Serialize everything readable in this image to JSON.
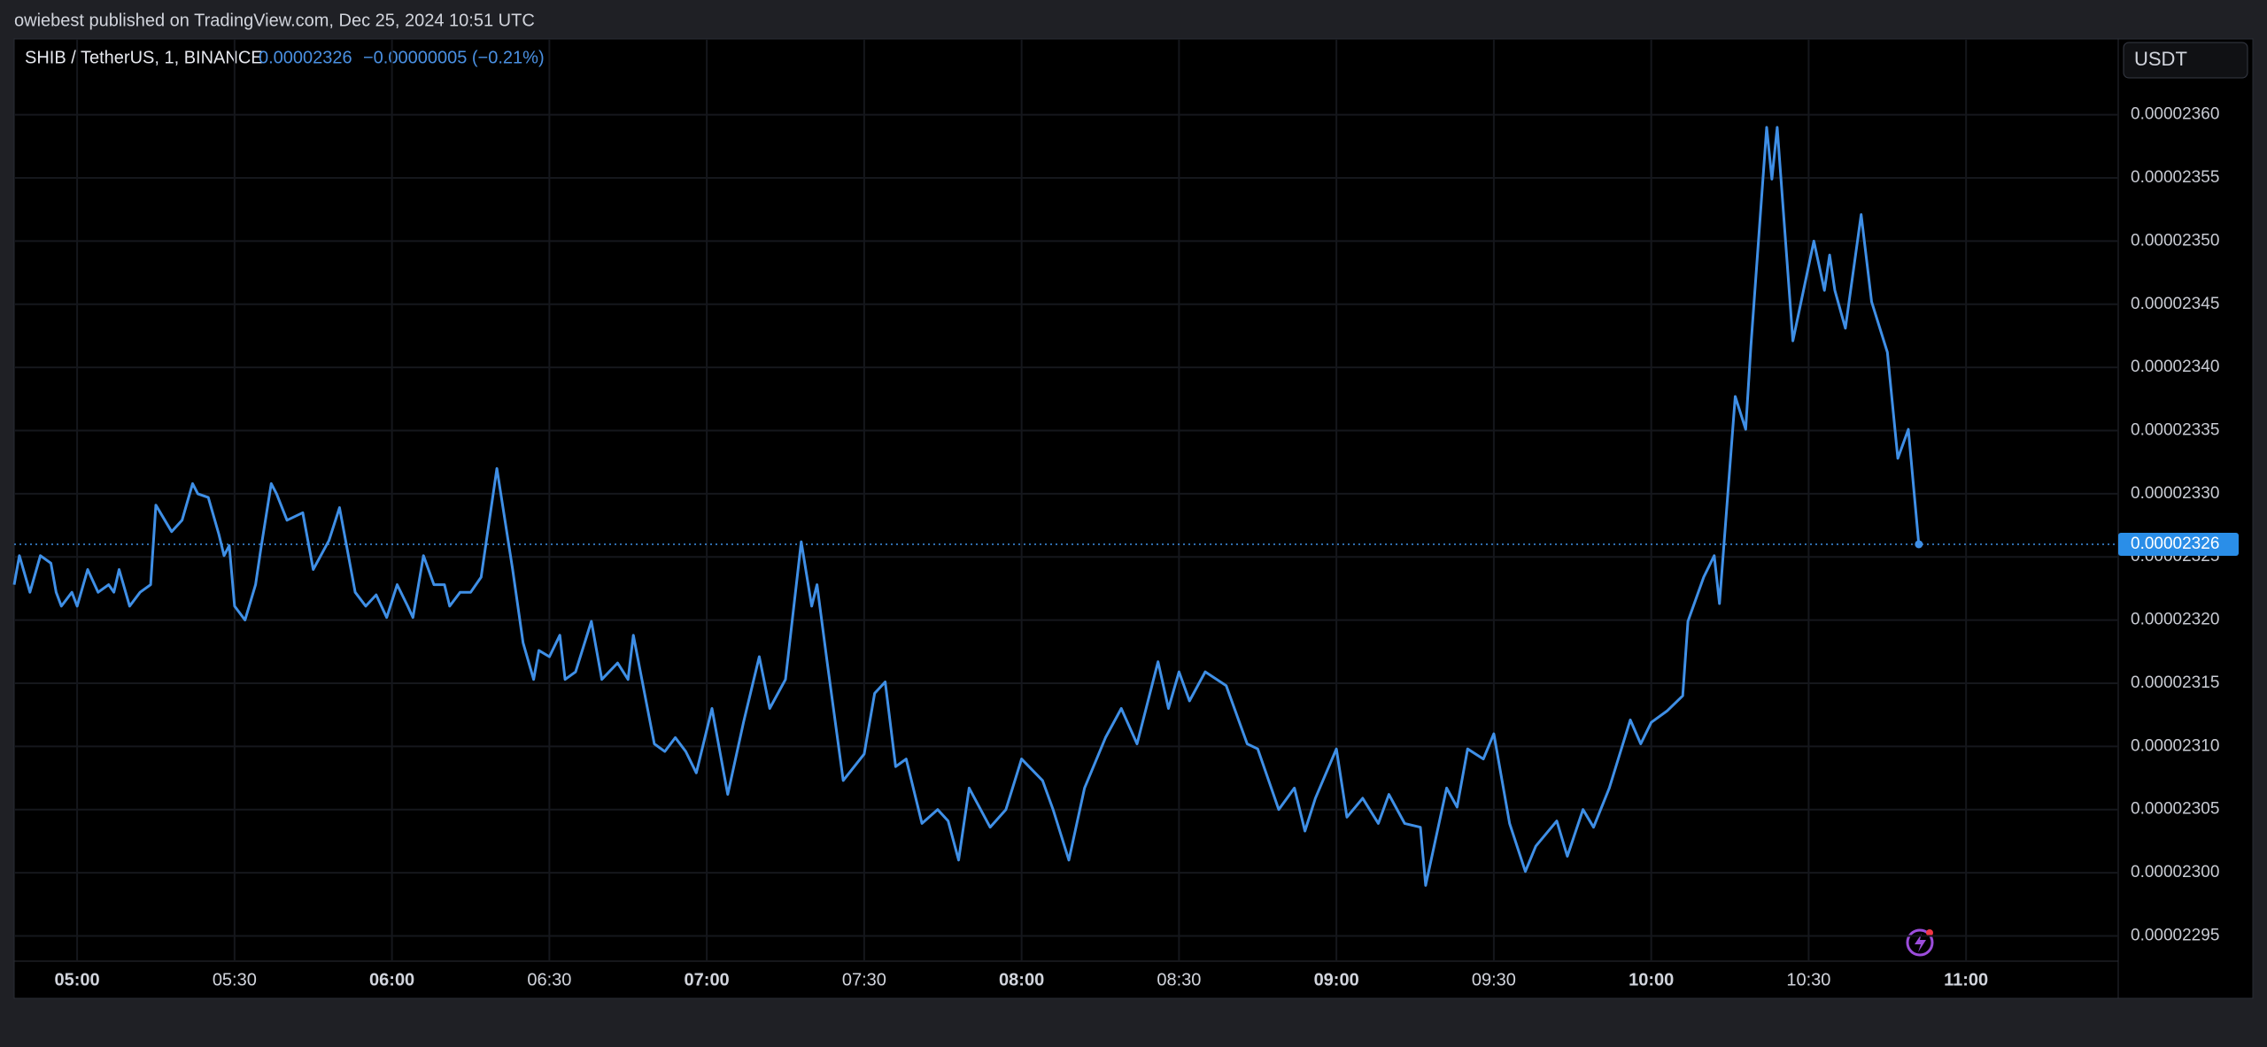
{
  "header": {
    "publisher": "owiebest published on TradingView.com, Dec 25, 2024 10:51 UTC"
  },
  "chart_data": {
    "type": "line",
    "title": "SHIB / TetherUS, 1, BINANCE",
    "last_price": "0.00002326",
    "change": "−0.00000005 (−0.21%)",
    "currency": "USDT",
    "x": [
      "04:48",
      "04:49",
      "04:51",
      "04:53",
      "04:55",
      "04:56",
      "04:57",
      "04:59",
      "05:00",
      "05:02",
      "05:04",
      "05:06",
      "05:07",
      "05:08",
      "05:10",
      "05:12",
      "05:14",
      "05:15",
      "05:18",
      "05:20",
      "05:22",
      "05:23",
      "05:25",
      "05:27",
      "05:28",
      "05:29",
      "05:30",
      "05:32",
      "05:34",
      "05:35",
      "05:37",
      "05:38",
      "05:40",
      "05:43",
      "05:45",
      "05:48",
      "05:50",
      "05:53",
      "05:55",
      "05:57",
      "05:59",
      "06:01",
      "06:03",
      "06:04",
      "06:06",
      "06:08",
      "06:10",
      "06:11",
      "06:13",
      "06:15",
      "06:17",
      "06:20",
      "06:23",
      "06:25",
      "06:27",
      "06:28",
      "06:30",
      "06:32",
      "06:33",
      "06:35",
      "06:38",
      "06:40",
      "06:43",
      "06:45",
      "06:46",
      "06:50",
      "06:52",
      "06:54",
      "06:56",
      "06:58",
      "07:01",
      "07:04",
      "07:07",
      "07:10",
      "07:12",
      "07:15",
      "07:18",
      "07:20",
      "07:21",
      "07:23",
      "07:26",
      "07:30",
      "07:32",
      "07:34",
      "07:36",
      "07:38",
      "07:41",
      "07:44",
      "07:46",
      "07:48",
      "07:50",
      "07:54",
      "07:57",
      "08:00",
      "08:04",
      "08:06",
      "08:09",
      "08:12",
      "08:16",
      "08:19",
      "08:22",
      "08:26",
      "08:28",
      "08:30",
      "08:32",
      "08:35",
      "08:39",
      "08:43",
      "08:45",
      "08:49",
      "08:52",
      "08:54",
      "08:56",
      "09:00",
      "09:02",
      "09:05",
      "09:08",
      "09:10",
      "09:13",
      "09:16",
      "09:17",
      "09:21",
      "09:23",
      "09:25",
      "09:28",
      "09:30",
      "09:33",
      "09:36",
      "09:38",
      "09:42",
      "09:44",
      "09:47",
      "09:49",
      "09:52",
      "09:56",
      "09:58",
      "10:00",
      "10:03",
      "10:06",
      "10:07",
      "10:10",
      "10:12",
      "10:13",
      "10:16",
      "10:18",
      "10:19",
      "10:22",
      "10:23",
      "10:24",
      "10:27",
      "10:31",
      "10:33",
      "10:34",
      "10:35",
      "10:37",
      "10:40",
      "10:42",
      "10:45",
      "10:47",
      "10:49",
      "10:51"
    ],
    "series": [
      {
        "color": "#3f8fe6",
        "values": [
          2.3228e-05,
          2.3251e-05,
          2.3222e-05,
          2.3251e-05,
          2.3245e-05,
          2.3222e-05,
          2.3211e-05,
          2.3222e-05,
          2.3211e-05,
          2.324e-05,
          2.3222e-05,
          2.3228e-05,
          2.3222e-05,
          2.324e-05,
          2.3211e-05,
          2.3222e-05,
          2.3228e-05,
          2.3291e-05,
          2.327e-05,
          2.3279e-05,
          2.3308e-05,
          2.33e-05,
          2.3297e-05,
          2.3268e-05,
          2.3251e-05,
          2.3259e-05,
          2.3211e-05,
          2.32e-05,
          2.3228e-05,
          2.3256e-05,
          2.3308e-05,
          2.33e-05,
          2.3279e-05,
          2.3285e-05,
          2.324e-05,
          2.3263e-05,
          2.3289e-05,
          2.3222e-05,
          2.3211e-05,
          2.322e-05,
          2.3202e-05,
          2.3228e-05,
          2.3211e-05,
          2.3202e-05,
          2.3251e-05,
          2.3228e-05,
          2.3228e-05,
          2.3211e-05,
          2.3222e-05,
          2.3222e-05,
          2.3234e-05,
          2.332e-05,
          2.324e-05,
          2.3182e-05,
          2.3153e-05,
          2.3176e-05,
          2.3171e-05,
          2.3188e-05,
          2.3153e-05,
          2.3159e-05,
          2.3199e-05,
          2.3153e-05,
          2.3166e-05,
          2.3153e-05,
          2.3188e-05,
          2.3102e-05,
          2.3096e-05,
          2.3107e-05,
          2.3096e-05,
          2.3079e-05,
          2.313e-05,
          2.3062e-05,
          2.3119e-05,
          2.3171e-05,
          2.313e-05,
          2.3153e-05,
          2.3262e-05,
          2.3211e-05,
          2.3228e-05,
          2.3165e-05,
          2.3073e-05,
          2.3094e-05,
          2.3142e-05,
          2.3151e-05,
          2.3084e-05,
          2.309e-05,
          2.3039e-05,
          2.305e-05,
          2.3041e-05,
          2.301e-05,
          2.3067e-05,
          2.3036e-05,
          2.305e-05,
          2.309e-05,
          2.3073e-05,
          2.305e-05,
          2.301e-05,
          2.3067e-05,
          2.3107e-05,
          2.313e-05,
          2.3102e-05,
          2.3167e-05,
          2.313e-05,
          2.3159e-05,
          2.3136e-05,
          2.3159e-05,
          2.3148e-05,
          2.3102e-05,
          2.3098e-05,
          2.305e-05,
          2.3067e-05,
          2.3033e-05,
          2.3059e-05,
          2.3098e-05,
          2.3044e-05,
          2.3059e-05,
          2.3039e-05,
          2.3062e-05,
          2.3039e-05,
          2.3036e-05,
          2.299e-05,
          2.3067e-05,
          2.3052e-05,
          2.3098e-05,
          2.309e-05,
          2.311e-05,
          2.3039e-05,
          2.3001e-05,
          2.3021e-05,
          2.3041e-05,
          2.3013e-05,
          2.305e-05,
          2.3036e-05,
          2.3067e-05,
          2.3121e-05,
          2.3102e-05,
          2.3119e-05,
          2.3128e-05,
          2.314e-05,
          2.3199e-05,
          2.3234e-05,
          2.3251e-05,
          2.3213e-05,
          2.3377e-05,
          2.3351e-05,
          2.3417e-05,
          2.359e-05,
          2.3549e-05,
          2.359e-05,
          2.3421e-05,
          2.35e-05,
          2.3461e-05,
          2.3489e-05,
          2.3461e-05,
          2.3431e-05,
          2.3521e-05,
          2.3452e-05,
          2.3412e-05,
          2.3328e-05,
          2.3351e-05,
          2.326e-05
        ]
      }
    ],
    "xlim": [
      "04:48",
      "11:29"
    ],
    "xticks": [
      "05:00",
      "05:30",
      "06:00",
      "06:30",
      "07:00",
      "07:30",
      "08:00",
      "08:30",
      "09:00",
      "09:30",
      "10:00",
      "10:30",
      "11:00"
    ],
    "ylim": [
      2.293e-05,
      2.366e-05
    ],
    "yticks": [
      {
        "value": 2.36e-05,
        "label": "0.00002360"
      },
      2.355e-05,
      {
        "value": 2.35e-05,
        "label": "0.00002350"
      },
      2.345e-05,
      {
        "value": 2.34e-05,
        "label": "0.00002340"
      },
      2.335e-05,
      {
        "value": 2.33e-05,
        "label": "0.00002330"
      },
      2.325e-05,
      {
        "value": 2.32e-05,
        "label": "0.00002320"
      },
      2.315e-05,
      {
        "value": 2.31e-05,
        "label": "0.00002310"
      },
      2.305e-05,
      {
        "value": 2.3e-05,
        "label": "0.00002300"
      },
      2.295e-05
    ],
    "grid": true
  }
}
